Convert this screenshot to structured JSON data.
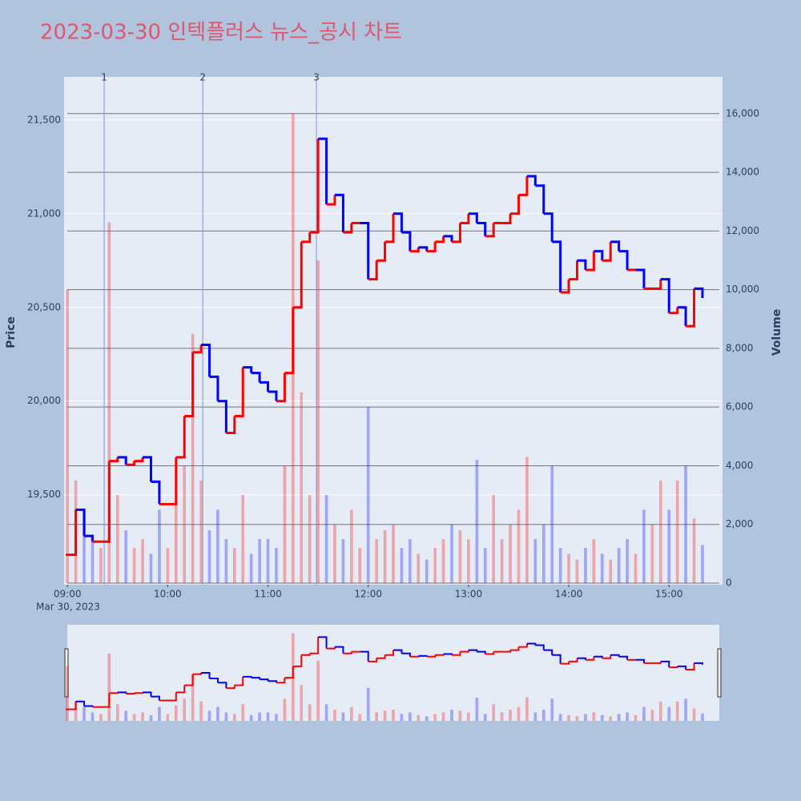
{
  "chart_data": {
    "type": "candlestick",
    "title": "2023-03-30 인텍플러스 뉴스_공시 차트",
    "y_label": "Price",
    "y2_label": "Volume",
    "x_date_label": "Mar 30, 2023",
    "x": [
      "09:00",
      "09:05",
      "09:10",
      "09:15",
      "09:20",
      "09:25",
      "09:30",
      "09:35",
      "09:40",
      "09:45",
      "09:50",
      "09:55",
      "10:00",
      "10:05",
      "10:10",
      "10:15",
      "10:20",
      "10:25",
      "10:30",
      "10:35",
      "10:40",
      "10:45",
      "10:50",
      "10:55",
      "11:00",
      "11:05",
      "11:10",
      "11:15",
      "11:20",
      "11:25",
      "11:30",
      "11:35",
      "11:40",
      "11:45",
      "11:50",
      "11:55",
      "12:00",
      "12:05",
      "12:10",
      "12:15",
      "12:20",
      "12:25",
      "12:30",
      "12:35",
      "12:40",
      "12:45",
      "12:50",
      "12:55",
      "13:00",
      "13:05",
      "13:10",
      "13:15",
      "13:20",
      "13:25",
      "13:30",
      "13:35",
      "13:40",
      "13:45",
      "13:50",
      "13:55",
      "14:00",
      "14:05",
      "14:10",
      "14:15",
      "14:20",
      "14:25",
      "14:30",
      "14:35",
      "14:40",
      "14:45",
      "14:50",
      "14:55",
      "15:00",
      "15:05",
      "15:10",
      "15:15",
      "15:20"
    ],
    "series": [
      {
        "name": "Price",
        "values": [
          19180,
          19420,
          19280,
          19250,
          19250,
          19680,
          19700,
          19660,
          19680,
          19700,
          19570,
          19450,
          19450,
          19700,
          19920,
          20260,
          20300,
          20130,
          20000,
          19830,
          19920,
          20180,
          20150,
          20100,
          20050,
          20000,
          20150,
          20500,
          20850,
          20900,
          21400,
          21050,
          21100,
          20900,
          20950,
          20950,
          20650,
          20750,
          20850,
          21000,
          20900,
          20800,
          20820,
          20800,
          20850,
          20880,
          20850,
          20950,
          21000,
          20950,
          20880,
          20950,
          20950,
          21000,
          21100,
          21200,
          21150,
          21000,
          20850,
          20580,
          20650,
          20750,
          20700,
          20800,
          20750,
          20850,
          20800,
          20700,
          20700,
          20600,
          20600,
          20650,
          20470,
          20500,
          20400,
          20600,
          20550
        ]
      },
      {
        "name": "Volume",
        "axis": "y2",
        "values": [
          10000,
          3500,
          2500,
          1500,
          1200,
          12300,
          3000,
          1800,
          1200,
          1500,
          1000,
          2500,
          1200,
          2800,
          4000,
          8500,
          3500,
          1800,
          2500,
          1500,
          1200,
          3000,
          1000,
          1500,
          1500,
          1200,
          4000,
          16000,
          6500,
          3000,
          11000,
          3000,
          2000,
          1500,
          2500,
          1200,
          6000,
          1500,
          1800,
          2000,
          1200,
          1500,
          1000,
          800,
          1200,
          1500,
          2000,
          1800,
          1500,
          4200,
          1200,
          3000,
          1500,
          2000,
          2500,
          4300,
          1500,
          2000,
          4000,
          1200,
          1000,
          800,
          1200,
          1500,
          1000,
          800,
          1200,
          1500,
          1000,
          2500,
          2000,
          3500,
          2500,
          3500,
          4000,
          2200,
          1300
        ]
      }
    ],
    "up_color": "#ff0000",
    "down_color": "#0000ff",
    "news": [
      {
        "x": "09:22",
        "label": "1"
      },
      {
        "x": "10:21",
        "label": "2"
      },
      {
        "x": "11:29",
        "label": "3"
      }
    ],
    "xlim": [
      "08:58",
      "15:32"
    ],
    "xticks": [
      "09:00",
      "10:00",
      "11:00",
      "12:00",
      "13:00",
      "14:00",
      "15:00"
    ],
    "ylim": [
      19020,
      21730
    ],
    "yticks": [
      {
        "value": 19500,
        "label": "19,500"
      },
      {
        "value": 20000,
        "label": "20,000"
      },
      {
        "value": 20500,
        "label": "20,500"
      },
      {
        "value": 21000,
        "label": "21,000"
      },
      {
        "value": 21500,
        "label": "21,500"
      }
    ],
    "y2lim": [
      -55,
      17250
    ],
    "y2ticks": [
      0,
      {
        "value": 2000,
        "label": "2,000"
      },
      {
        "value": 4000,
        "label": "4,000"
      },
      {
        "value": 6000,
        "label": "6,000"
      },
      {
        "value": 8000,
        "label": "8,000"
      },
      {
        "value": 10000,
        "label": "10,000"
      },
      {
        "value": 12000,
        "label": "12,000"
      },
      {
        "value": 14000,
        "label": "14,000"
      },
      {
        "value": 16000,
        "label": "16,000"
      }
    ],
    "grid": true,
    "range_slider": true
  }
}
